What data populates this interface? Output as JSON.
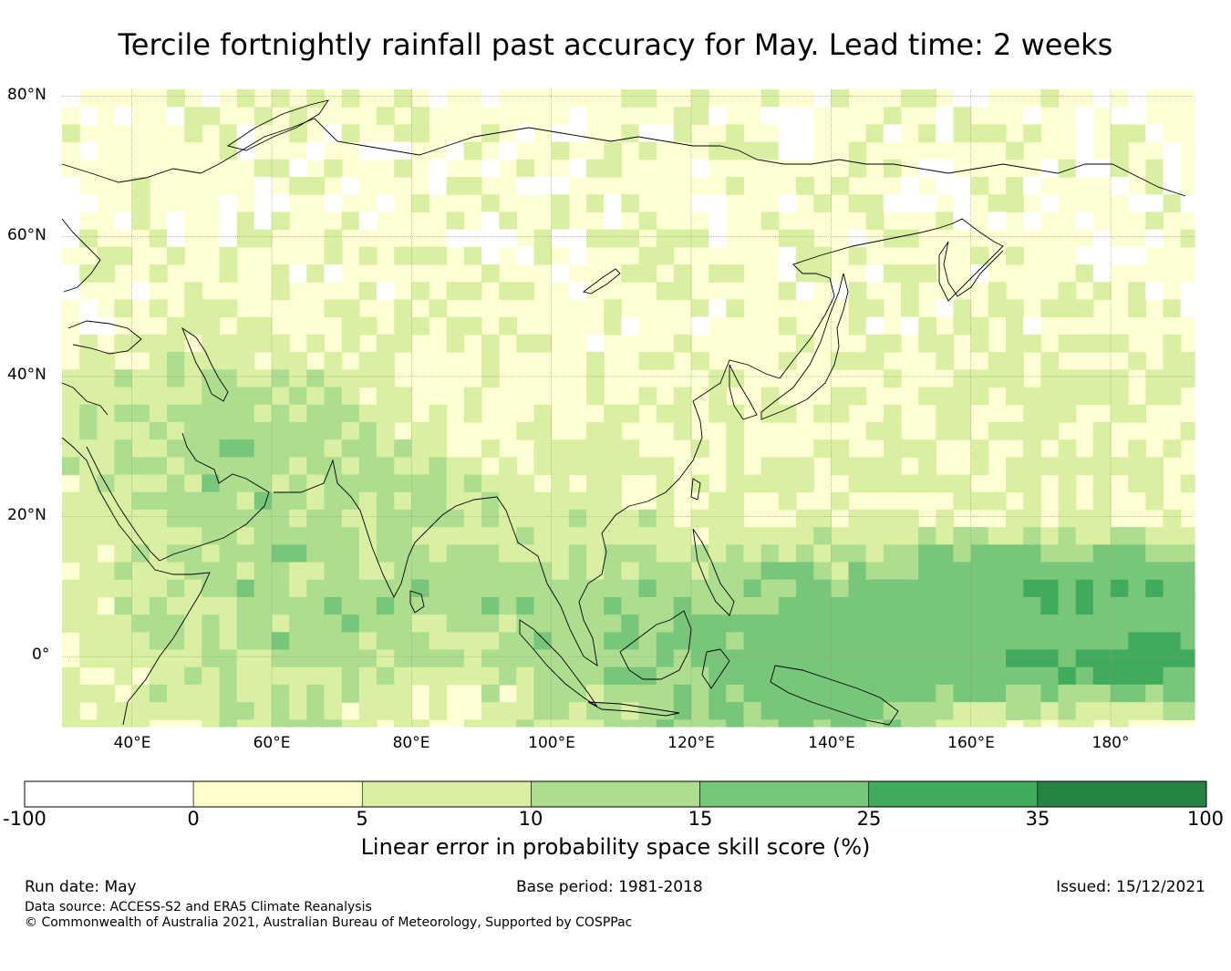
{
  "title": "Tercile fortnightly rainfall past accuracy for May. Lead time: 2 weeks",
  "map": {
    "lat_labels": [
      "80°N",
      "60°N",
      "40°N",
      "20°N",
      "0°"
    ],
    "lon_labels": [
      "40°E",
      "60°E",
      "80°E",
      "100°E",
      "120°E",
      "140°E",
      "160°E",
      "180°"
    ],
    "extent": {
      "lon_min": 30,
      "lon_max": 192,
      "lat_min": -10,
      "lat_max": 81
    },
    "ocean_color": "#ffffd4",
    "grid_color": "#9a9a7a",
    "coast_color": "#000000"
  },
  "colorbar": {
    "ticks": [
      "-100",
      "0",
      "5",
      "10",
      "15",
      "25",
      "35",
      "100"
    ],
    "colors": [
      "#ffffff",
      "#ffffcc",
      "#d9f0a3",
      "#addd8e",
      "#78c679",
      "#41ab5d",
      "#238443"
    ],
    "label": "Linear error in probability space skill score (%)"
  },
  "footer": {
    "run_date": "Run date: May",
    "base_period": "Base period: 1981-2018",
    "issued": "Issued: 15/12/2021",
    "data_source": "Data source: ACCESS-S2 and ERA5 Climate Reanalysis",
    "copyright": "© Commonwealth of Australia 2021, Australian Bureau of Meteorology, Supported by COSPPac"
  }
}
